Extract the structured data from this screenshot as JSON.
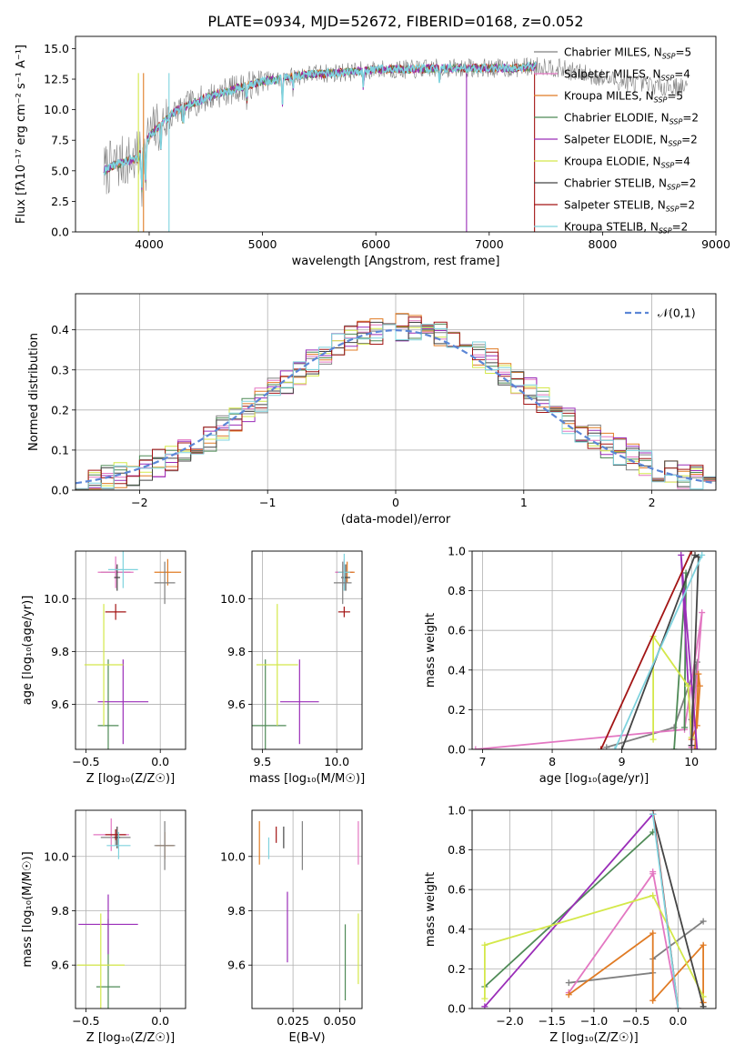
{
  "figure_title": "PLATE=0934, MJD=52672, FIBERID=0168, z=0.052",
  "models": [
    {
      "name": "Chabrier MILES",
      "n": "5",
      "color": "#808080"
    },
    {
      "name": "Salpeter MILES",
      "n": "4",
      "color": "#e377c2"
    },
    {
      "name": "Kroupa MILES",
      "n": "5",
      "color": "#e07b24"
    },
    {
      "name": "Chabrier ELODIE",
      "n": "2",
      "color": "#4e8a56"
    },
    {
      "name": "Salpeter ELODIE",
      "n": "2",
      "color": "#9a2db8"
    },
    {
      "name": "Kroupa ELODIE",
      "n": "4",
      "color": "#d4e84a"
    },
    {
      "name": "Chabrier STELIB",
      "n": "2",
      "color": "#444444"
    },
    {
      "name": "Salpeter STELIB",
      "n": "2",
      "color": "#a31515"
    },
    {
      "name": "Kroupa STELIB",
      "n": "2",
      "color": "#7fd3de"
    }
  ],
  "chart_data": [
    {
      "id": "spectrum",
      "type": "line",
      "xlabel": "wavelength [Angstrom, rest frame]",
      "ylabel": "Flux [fλ10⁻¹⁷ erg cm⁻² s⁻¹ A⁻¹]",
      "xlim": [
        3350,
        9000
      ],
      "ylim": [
        0,
        16
      ],
      "xticks": [
        4000,
        5000,
        6000,
        7000,
        8000,
        9000
      ],
      "yticks": [
        0.0,
        2.5,
        5.0,
        7.5,
        10.0,
        12.5,
        15.0
      ],
      "grid": false,
      "legend": "right",
      "continuum": {
        "x": [
          3600,
          3700,
          3800,
          3900,
          4000,
          4100,
          4250,
          4400,
          4600,
          4800,
          5000,
          5200,
          5400,
          5600,
          5800,
          6000,
          6300,
          6600,
          6900,
          7200,
          7500,
          7800,
          8100,
          8400,
          8750
        ],
        "y": [
          5.0,
          5.5,
          5.8,
          6.0,
          7.8,
          8.8,
          10.0,
          10.6,
          11.3,
          11.8,
          12.3,
          12.6,
          12.9,
          13.0,
          13.1,
          13.3,
          13.3,
          13.4,
          13.4,
          13.4,
          13.6,
          13.0,
          12.4,
          12.0,
          11.8
        ]
      },
      "spectrum_range": [
        3600,
        8750
      ],
      "model_range": [
        3600,
        7420
      ]
    },
    {
      "id": "residuals",
      "type": "histogram",
      "xlabel": "(data-model)/error",
      "ylabel": "Normed distribution",
      "xlim": [
        -2.5,
        2.5
      ],
      "ylim": [
        0,
        0.49
      ],
      "xticks": [
        -2,
        -1,
        0,
        1,
        2
      ],
      "yticks": [
        0.0,
        0.1,
        0.2,
        0.3,
        0.4
      ],
      "grid": true,
      "legend": "top-right",
      "reference": {
        "label": "𝒩(0,1)",
        "mu": 0,
        "sigma": 1
      },
      "bin_width": 0.1
    },
    {
      "id": "age-Z",
      "type": "errorbar",
      "xlabel": "Z [log₁₀(Z/Z☉)]",
      "ylabel": "age  [log₁₀(age/yr)]",
      "xlim": [
        -0.57,
        0.17
      ],
      "ylim": [
        9.43,
        10.18
      ],
      "xticks": [
        -0.5,
        0.0
      ],
      "yticks": [
        9.6,
        9.8,
        10.0
      ],
      "grid": true,
      "points": [
        {
          "m": 0,
          "x": -0.3,
          "y": 10.1,
          "xe": 0.1,
          "ye": 0.02
        },
        {
          "m": 1,
          "x": -0.3,
          "y": 10.1,
          "xe": 0.12,
          "ye": 0.06
        },
        {
          "m": 2,
          "x": 0.05,
          "y": 10.1,
          "xe": 0.09,
          "ye": 0.05
        },
        {
          "m": 3,
          "x": -0.35,
          "y": 9.52,
          "xe": 0.07,
          "ye": 0.25
        },
        {
          "m": 4,
          "x": -0.25,
          "y": 9.61,
          "xe": 0.17,
          "ye": 0.16
        },
        {
          "m": 5,
          "x": -0.38,
          "y": 9.75,
          "xe": 0.13,
          "ye": 0.23
        },
        {
          "m": 6,
          "x": -0.29,
          "y": 10.08,
          "xe": 0.02,
          "ye": 0.05
        },
        {
          "m": 7,
          "x": -0.3,
          "y": 9.95,
          "xe": 0.07,
          "ye": 0.03
        },
        {
          "m": 8,
          "x": -0.25,
          "y": 10.11,
          "xe": 0.1,
          "ye": 0.07
        },
        {
          "m": 0,
          "x": 0.03,
          "y": 10.06,
          "xe": 0.07,
          "ye": 0.08
        }
      ]
    },
    {
      "id": "age-mass",
      "type": "errorbar",
      "xlabel": "mass [log₁₀(M/M☉)]",
      "ylabel": "",
      "xlim": [
        9.43,
        10.17
      ],
      "ylim": [
        9.43,
        10.18
      ],
      "xticks": [
        9.5,
        10.0
      ],
      "yticks": [
        9.6,
        9.8,
        10.0
      ],
      "grid": true,
      "points": [
        {
          "m": 0,
          "x": 10.05,
          "y": 10.1,
          "xe": 0.06,
          "ye": 0.03
        },
        {
          "m": 1,
          "x": 10.05,
          "y": 10.1,
          "xe": 0.06,
          "ye": 0.05
        },
        {
          "m": 2,
          "x": 10.07,
          "y": 10.1,
          "xe": 0.05,
          "ye": 0.04
        },
        {
          "m": 3,
          "x": 9.52,
          "y": 9.52,
          "xe": 0.14,
          "ye": 0.25
        },
        {
          "m": 4,
          "x": 9.75,
          "y": 9.61,
          "xe": 0.13,
          "ye": 0.16
        },
        {
          "m": 5,
          "x": 9.6,
          "y": 9.75,
          "xe": 0.14,
          "ye": 0.23
        },
        {
          "m": 6,
          "x": 10.06,
          "y": 10.08,
          "xe": 0.03,
          "ye": 0.05
        },
        {
          "m": 7,
          "x": 10.05,
          "y": 9.95,
          "xe": 0.04,
          "ye": 0.02
        },
        {
          "m": 8,
          "x": 10.05,
          "y": 10.1,
          "xe": 0.04,
          "ye": 0.07
        },
        {
          "m": 0,
          "x": 10.04,
          "y": 10.06,
          "xe": 0.06,
          "ye": 0.08
        }
      ]
    },
    {
      "id": "mw-age",
      "type": "line",
      "xlabel": "age  [log₁₀(age/yr)]",
      "ylabel": "mass weight",
      "xlim": [
        6.85,
        10.35
      ],
      "ylim": [
        0,
        1
      ],
      "xticks": [
        7,
        8,
        9,
        10
      ],
      "yticks": [
        0.0,
        0.2,
        0.4,
        0.6,
        0.8,
        1.0
      ],
      "grid": true,
      "series": [
        {
          "m": 0,
          "x": [
            8.78,
            9.75,
            10.08,
            10.0
          ],
          "y": [
            0.01,
            0.11,
            0.44,
            0.15
          ]
        },
        {
          "m": 1,
          "x": [
            6.9,
            9.9,
            10.15,
            10.0
          ],
          "y": [
            0.0,
            0.1,
            0.69,
            0.01
          ]
        },
        {
          "m": 2,
          "x": [
            10.0,
            10.08,
            10.12,
            10.1,
            10.05
          ],
          "y": [
            0.05,
            0.12,
            0.32,
            0.38,
            0.0
          ]
        },
        {
          "m": 3,
          "x": [
            9.9,
            9.92,
            9.75
          ],
          "y": [
            0.11,
            0.89,
            0.0
          ]
        },
        {
          "m": 4,
          "x": [
            10.0,
            9.85,
            10.08
          ],
          "y": [
            0.02,
            0.98,
            0.0
          ]
        },
        {
          "m": 5,
          "x": [
            9.45,
            9.45,
            9.95,
            10.0
          ],
          "y": [
            0.05,
            0.57,
            0.32,
            0.06
          ]
        },
        {
          "m": 6,
          "x": [
            9.0,
            10.05,
            10.1,
            10.0
          ],
          "y": [
            0.0,
            0.98,
            0.97,
            0.02
          ]
        },
        {
          "m": 7,
          "x": [
            8.7,
            10.0
          ],
          "y": [
            0.0,
            1.0
          ]
        },
        {
          "m": 8,
          "x": [
            8.9,
            10.15
          ],
          "y": [
            0.0,
            0.98
          ]
        }
      ]
    },
    {
      "id": "mass-Z",
      "type": "errorbar",
      "xlabel": "Z [log₁₀(Z/Z☉)]",
      "ylabel": "mass [log₁₀(M/M☉)]",
      "xlim": [
        -0.57,
        0.17
      ],
      "ylim": [
        9.44,
        10.17
      ],
      "xticks": [
        -0.5,
        0.0
      ],
      "yticks": [
        9.6,
        9.8,
        10.0
      ],
      "grid": true,
      "points": [
        {
          "m": 0,
          "x": -0.3,
          "y": 10.07,
          "xe": 0.1,
          "ye": 0.03
        },
        {
          "m": 1,
          "x": -0.33,
          "y": 10.08,
          "xe": 0.12,
          "ye": 0.06
        },
        {
          "m": 2,
          "x": 0.03,
          "y": 10.04,
          "xe": 0.06,
          "ye": 0.05
        },
        {
          "m": 3,
          "x": -0.35,
          "y": 9.52,
          "xe": 0.08,
          "ye": 0.25
        },
        {
          "m": 4,
          "x": -0.35,
          "y": 9.75,
          "xe": 0.2,
          "ye": 0.11
        },
        {
          "m": 5,
          "x": -0.4,
          "y": 9.6,
          "xe": 0.16,
          "ye": 0.19
        },
        {
          "m": 6,
          "x": -0.29,
          "y": 10.07,
          "xe": 0.02,
          "ye": 0.04
        },
        {
          "m": 7,
          "x": -0.3,
          "y": 10.08,
          "xe": 0.07,
          "ye": 0.02
        },
        {
          "m": 8,
          "x": -0.28,
          "y": 10.04,
          "xe": 0.08,
          "ye": 0.05
        },
        {
          "m": 0,
          "x": 0.03,
          "y": 10.04,
          "xe": 0.07,
          "ye": 0.09
        }
      ]
    },
    {
      "id": "mass-EBV",
      "type": "errorbar",
      "xlabel": "E(B-V)",
      "ylabel": "",
      "xlim": [
        0.003,
        0.062
      ],
      "ylim": [
        9.44,
        10.17
      ],
      "xticks": [
        0.025,
        0.05
      ],
      "yticks": [
        9.6,
        9.8,
        10.0
      ],
      "grid": true,
      "points": [
        {
          "m": 0,
          "x": 0.03,
          "y": 10.04,
          "xe": 0.0,
          "ye": 0.09
        },
        {
          "m": 1,
          "x": 0.06,
          "y": 10.05,
          "xe": 0.0,
          "ye": 0.08
        },
        {
          "m": 2,
          "x": 0.007,
          "y": 10.05,
          "xe": 0.0,
          "ye": 0.08
        },
        {
          "m": 3,
          "x": 0.053,
          "y": 9.61,
          "xe": 0.0,
          "ye": 0.14
        },
        {
          "m": 4,
          "x": 0.022,
          "y": 9.74,
          "xe": 0.0,
          "ye": 0.13
        },
        {
          "m": 5,
          "x": 0.06,
          "y": 9.66,
          "xe": 0.0,
          "ye": 0.13
        },
        {
          "m": 6,
          "x": 0.02,
          "y": 10.07,
          "xe": 0.0,
          "ye": 0.04
        },
        {
          "m": 7,
          "x": 0.016,
          "y": 10.08,
          "xe": 0.0,
          "ye": 0.03
        },
        {
          "m": 8,
          "x": 0.012,
          "y": 10.03,
          "xe": 0.0,
          "ye": 0.04
        }
      ]
    },
    {
      "id": "mw-Z",
      "type": "line",
      "xlabel": "Z [log₁₀(Z/Z☉)]",
      "ylabel": "mass weight",
      "xlim": [
        -2.45,
        0.45
      ],
      "ylim": [
        0,
        1
      ],
      "xticks": [
        -2.0,
        -1.5,
        -1.0,
        -0.5,
        0.0
      ],
      "yticks": [
        0.0,
        0.2,
        0.4,
        0.6,
        0.8,
        1.0
      ],
      "grid": true,
      "series": [
        {
          "m": 0,
          "x": [
            -1.3,
            -0.3,
            -0.3,
            0.3
          ],
          "y": [
            0.13,
            0.18,
            0.25,
            0.44
          ]
        },
        {
          "m": 1,
          "x": [
            -1.3,
            -0.3,
            -0.3,
            0.0
          ],
          "y": [
            0.08,
            0.68,
            0.69,
            0.0
          ]
        },
        {
          "m": 2,
          "x": [
            -1.3,
            -0.3,
            -0.3,
            0.3,
            0.3
          ],
          "y": [
            0.07,
            0.38,
            0.04,
            0.32,
            0.03
          ]
        },
        {
          "m": 3,
          "x": [
            -2.3,
            -0.3
          ],
          "y": [
            0.11,
            0.89
          ]
        },
        {
          "m": 4,
          "x": [
            -2.3,
            -0.3
          ],
          "y": [
            0.01,
            0.98
          ]
        },
        {
          "m": 5,
          "x": [
            -2.3,
            -2.3,
            -0.3,
            0.3
          ],
          "y": [
            0.05,
            0.32,
            0.57,
            0.06
          ]
        },
        {
          "m": 6,
          "x": [
            -0.3,
            0.3
          ],
          "y": [
            0.98,
            0.01
          ]
        },
        {
          "m": 7,
          "x": [
            -0.3,
            0.0
          ],
          "y": [
            1.0,
            0.0
          ]
        },
        {
          "m": 8,
          "x": [
            -0.3,
            0.0
          ],
          "y": [
            0.98,
            0.0
          ]
        }
      ]
    }
  ]
}
